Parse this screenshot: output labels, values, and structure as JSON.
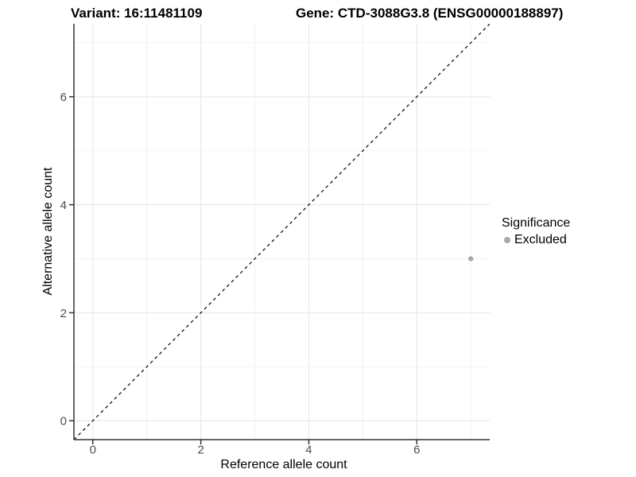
{
  "figure": {
    "background": "#ffffff"
  },
  "chart_data": {
    "type": "scatter",
    "titles": {
      "left": "Variant: 16:11481109",
      "right": "Gene: CTD-3088G3.8 (ENSG00000188897)"
    },
    "xlabel": "Reference allele count",
    "ylabel": "Alternative allele count",
    "xlim": [
      -0.35,
      7.35
    ],
    "ylim": [
      -0.35,
      7.35
    ],
    "x_ticks": [
      0,
      2,
      4,
      6
    ],
    "y_ticks": [
      0,
      2,
      4,
      6
    ],
    "x_minor_ticks": [
      1,
      3,
      5,
      7
    ],
    "y_minor_ticks": [
      1,
      3,
      5,
      7
    ],
    "reference_line": {
      "type": "identity",
      "slope": 1,
      "intercept": 0,
      "linetype": "dashed",
      "color": "#000000"
    },
    "series": [
      {
        "name": "Excluded",
        "color": "#a8a8a8",
        "points": [
          [
            7,
            3
          ]
        ]
      }
    ],
    "legend": {
      "title": "Significance",
      "position": "right",
      "entries": [
        {
          "label": "Excluded",
          "color": "#a8a8a8"
        }
      ]
    },
    "grid": {
      "major_color": "#e5e5e5",
      "minor_color": "#f2f2f2"
    },
    "axis_color": "#333333",
    "tick_label_color": "#4d4d4d"
  }
}
